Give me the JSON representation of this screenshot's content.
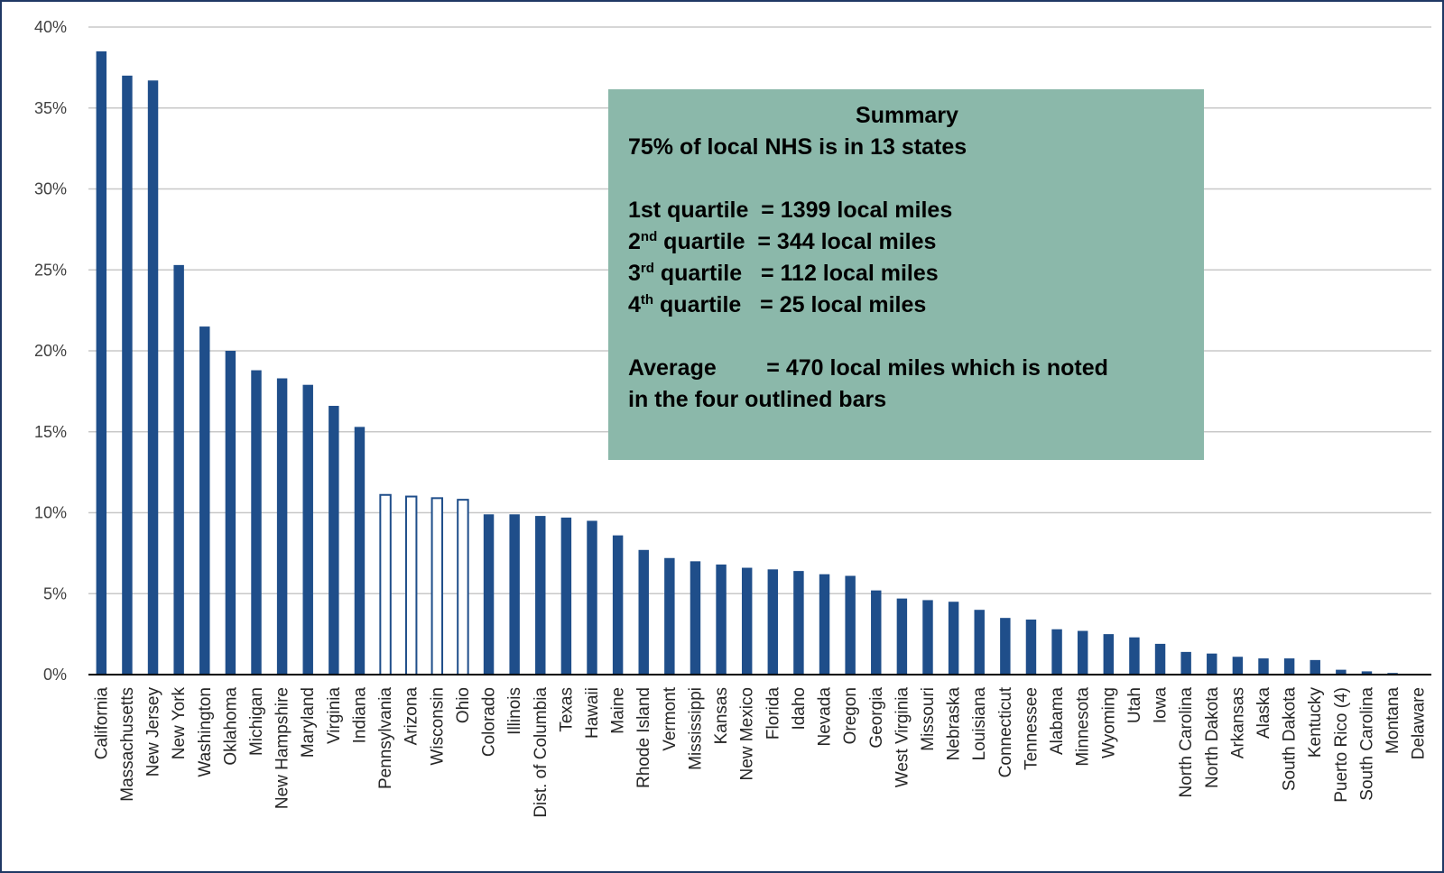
{
  "colors": {
    "bar_fill": "#1f4e8a",
    "outlined_bar_fill": "#ffffff",
    "frame": "#1f3864",
    "summary_bg": "#8bb8aa"
  },
  "chart_data": {
    "type": "bar",
    "title": "",
    "xlabel": "",
    "ylabel": "",
    "ylim": [
      0,
      40
    ],
    "y_ticks": [
      "0%",
      "5%",
      "10%",
      "15%",
      "20%",
      "25%",
      "30%",
      "35%",
      "40%"
    ],
    "grid": true,
    "categories": [
      "California",
      "Massachusetts",
      "New Jersey",
      "New York",
      "Washington",
      "Oklahoma",
      "Michigan",
      "New Hampshire",
      "Maryland",
      "Virginia",
      "Indiana",
      "Pennsylvania",
      "Arizona",
      "Wisconsin",
      "Ohio",
      "Colorado",
      "Illinois",
      "Dist. of Columbia",
      "Texas",
      "Hawaii",
      "Maine",
      "Rhode Island",
      "Vermont",
      "Mississippi",
      "Kansas",
      "New Mexico",
      "Florida",
      "Idaho",
      "Nevada",
      "Oregon",
      "Georgia",
      "West Virginia",
      "Missouri",
      "Nebraska",
      "Louisiana",
      "Connecticut",
      "Tennessee",
      "Alabama",
      "Minnesota",
      "Wyoming",
      "Utah",
      "Iowa",
      "North Carolina",
      "North Dakota",
      "Arkansas",
      "Alaska",
      "South Dakota",
      "Kentucky",
      "Puerto Rico  (4)",
      "South Carolina",
      "Montana",
      "Delaware"
    ],
    "values": [
      38.5,
      37.0,
      36.7,
      25.3,
      21.5,
      20.0,
      18.8,
      18.3,
      17.9,
      16.6,
      15.3,
      11.1,
      11.0,
      10.9,
      10.8,
      9.9,
      9.9,
      9.8,
      9.7,
      9.5,
      8.6,
      7.7,
      7.2,
      7.0,
      6.8,
      6.6,
      6.5,
      6.4,
      6.2,
      6.1,
      5.2,
      4.7,
      4.6,
      4.5,
      4.0,
      3.5,
      3.4,
      2.8,
      2.7,
      2.5,
      2.3,
      1.9,
      1.4,
      1.3,
      1.1,
      1.0,
      1.0,
      0.9,
      0.3,
      0.2,
      0.1,
      0.0
    ],
    "outlined": [
      "Pennsylvania",
      "Arizona",
      "Wisconsin",
      "Ohio"
    ],
    "unit": "%"
  },
  "summary": {
    "title": "Summary",
    "line1": "75% of local NHS is in 13 states",
    "q1": "1st quartile  = 1399 local miles",
    "q2_prefix": "2",
    "q2_sup": "nd",
    "q2_rest": " quartile  = 344 local miles",
    "q3_prefix": "3",
    "q3_sup": "rd",
    "q3_rest": " quartile   = 112 local miles",
    "q4_prefix": "4",
    "q4_sup": "th",
    "q4_rest": " quartile   = 25 local miles",
    "avg1": "Average        = 470 local miles which is noted",
    "avg2": "in the four outlined bars"
  }
}
